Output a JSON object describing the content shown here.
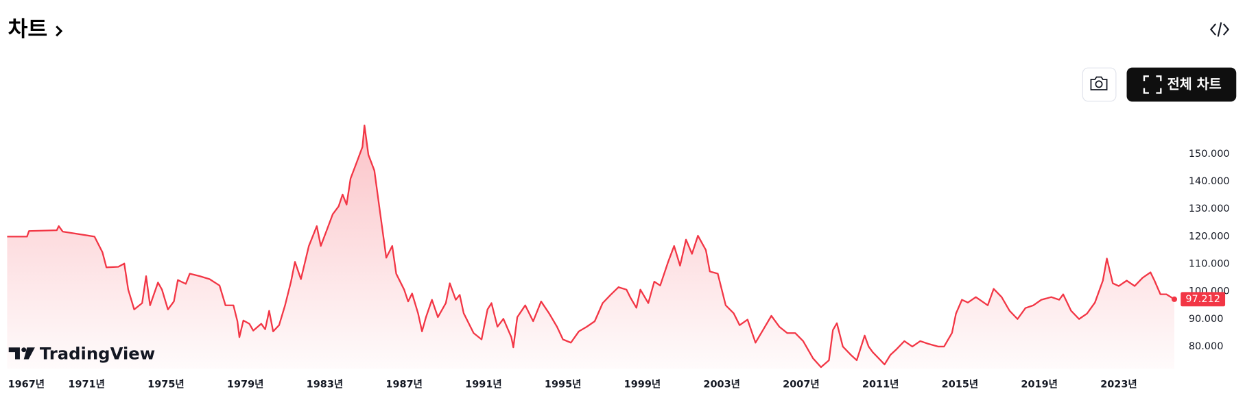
{
  "header": {
    "title": "차트"
  },
  "buttons": {
    "full_chart": "전체 차트"
  },
  "watermark": "TradingView",
  "chart_data": {
    "type": "area",
    "color": "#f23645",
    "x": [
      1967.0,
      1968.0,
      1968.1,
      1969.5,
      1969.6,
      1969.8,
      1971.4,
      1971.8,
      1972.0,
      1972.6,
      1972.9,
      1973.1,
      1973.4,
      1973.8,
      1974.0,
      1974.2,
      1974.6,
      1974.8,
      1975.1,
      1975.4,
      1975.6,
      1976.0,
      1976.2,
      1976.7,
      1977.2,
      1977.7,
      1978.0,
      1978.4,
      1978.6,
      1978.7,
      1978.9,
      1979.2,
      1979.4,
      1979.8,
      1980.0,
      1980.2,
      1980.4,
      1980.7,
      1981.0,
      1981.3,
      1981.5,
      1981.8,
      1982.2,
      1982.6,
      1982.8,
      1983.1,
      1983.4,
      1983.7,
      1983.9,
      1984.1,
      1984.3,
      1984.6,
      1984.9,
      1985.0,
      1985.2,
      1985.5,
      1985.8,
      1986.1,
      1986.4,
      1986.6,
      1987.0,
      1987.2,
      1987.4,
      1987.7,
      1987.9,
      1988.1,
      1988.4,
      1988.7,
      1989.1,
      1989.3,
      1989.6,
      1989.8,
      1990.0,
      1990.5,
      1990.9,
      1991.2,
      1991.4,
      1991.7,
      1992.0,
      1992.4,
      1992.5,
      1992.7,
      1993.1,
      1993.5,
      1993.9,
      1994.3,
      1994.7,
      1995.0,
      1995.4,
      1995.8,
      1996.2,
      1996.6,
      1997.0,
      1997.4,
      1997.8,
      1998.2,
      1998.4,
      1998.7,
      1998.9,
      1999.3,
      1999.6,
      1999.9,
      2000.3,
      2000.6,
      2000.9,
      2001.2,
      2001.5,
      2001.8,
      2002.2,
      2002.4,
      2002.8,
      2003.2,
      2003.6,
      2003.9,
      2004.3,
      2004.7,
      2005.1,
      2005.5,
      2005.9,
      2006.3,
      2006.7,
      2007.1,
      2007.6,
      2008.0,
      2008.4,
      2008.6,
      2008.8,
      2009.1,
      2009.5,
      2009.8,
      2010.2,
      2010.4,
      2010.6,
      2011.0,
      2011.2,
      2011.5,
      2011.8,
      2012.2,
      2012.6,
      2013.0,
      2013.4,
      2013.9,
      2014.2,
      2014.6,
      2014.8,
      2015.1,
      2015.4,
      2015.8,
      2016.4,
      2016.7,
      2017.1,
      2017.5,
      2017.9,
      2018.3,
      2018.7,
      2019.1,
      2019.6,
      2020.0,
      2020.2,
      2020.6,
      2021.0,
      2021.4,
      2021.8,
      2022.2,
      2022.4,
      2022.7,
      2023.0,
      2023.4,
      2023.8,
      2024.2,
      2024.6,
      2024.8,
      2025.1,
      2025.4,
      2025.8
    ],
    "values": [
      120.0,
      120,
      122,
      122.3,
      123.8,
      121.8,
      120,
      114.3,
      108.8,
      109,
      110.2,
      100.7,
      93.5,
      95.8,
      105.6,
      95,
      103.3,
      100.7,
      93.5,
      96.4,
      104.2,
      102.8,
      106.5,
      105.6,
      104.5,
      102.2,
      95,
      95,
      89.2,
      83.4,
      89.5,
      88.3,
      85.8,
      88.3,
      86.3,
      93,
      85.5,
      87.8,
      95,
      103.6,
      110.8,
      104.5,
      116.6,
      123.8,
      116.6,
      122.3,
      128.1,
      131,
      135.3,
      131.6,
      141.1,
      146.8,
      152.6,
      160.4,
      149.7,
      144,
      128.1,
      112.3,
      116.6,
      106.5,
      100.7,
      96.4,
      99.3,
      92.1,
      85.5,
      90.7,
      97,
      90.7,
      95.8,
      103,
      97,
      98.8,
      92.1,
      84.9,
      82.6,
      93.5,
      95.8,
      87.2,
      90.1,
      83.4,
      79.7,
      90.7,
      95,
      89.2,
      96.4,
      92.1,
      87.2,
      82.6,
      81.4,
      85.5,
      87.2,
      89.2,
      95.8,
      98.8,
      101.6,
      100.7,
      97.8,
      94.1,
      100.7,
      95.8,
      103.6,
      102.2,
      110.8,
      116.6,
      109.4,
      118.9,
      113.7,
      120.3,
      115.1,
      107.3,
      106.5,
      95,
      92.1,
      87.8,
      89.8,
      81.4,
      86.3,
      91.2,
      87.2,
      84.9,
      84.9,
      82,
      75.7,
      72.5,
      75,
      86,
      88.5,
      80,
      77,
      75,
      84,
      80,
      78,
      75,
      73.5,
      77,
      79,
      82,
      80,
      82,
      81,
      80,
      80,
      85,
      92,
      97,
      96,
      98,
      95,
      101,
      98,
      93,
      90,
      94,
      95,
      97,
      98,
      97,
      99,
      93,
      90,
      92,
      96,
      104,
      112,
      103,
      102,
      104,
      102,
      105,
      107,
      104,
      99,
      99,
      97.212
    ],
    "xlim": [
      1967,
      2025.9
    ],
    "ylim": [
      71.9,
      165.6
    ],
    "xticks": [
      {
        "value": 1967,
        "label": "1967년"
      },
      {
        "value": 1971,
        "label": "1971년"
      },
      {
        "value": 1975,
        "label": "1975년"
      },
      {
        "value": 1979,
        "label": "1979년"
      },
      {
        "value": 1983,
        "label": "1983년"
      },
      {
        "value": 1987,
        "label": "1987년"
      },
      {
        "value": 1991,
        "label": "1991년"
      },
      {
        "value": 1995,
        "label": "1995년"
      },
      {
        "value": 1999,
        "label": "1999년"
      },
      {
        "value": 2003,
        "label": "2003년"
      },
      {
        "value": 2007,
        "label": "2007년"
      },
      {
        "value": 2011,
        "label": "2011년"
      },
      {
        "value": 2015,
        "label": "2015년"
      },
      {
        "value": 2019,
        "label": "2019년"
      },
      {
        "value": 2023,
        "label": "2023년"
      }
    ],
    "yticks": [
      {
        "value": 80,
        "label": "80.000"
      },
      {
        "value": 90,
        "label": "90.000"
      },
      {
        "value": 100,
        "label": "100.000"
      },
      {
        "value": 110,
        "label": "110.000"
      },
      {
        "value": 120,
        "label": "120.000"
      },
      {
        "value": 130,
        "label": "130.000"
      },
      {
        "value": 140,
        "label": "140.000"
      },
      {
        "value": 150,
        "label": "150.000"
      }
    ]
  }
}
